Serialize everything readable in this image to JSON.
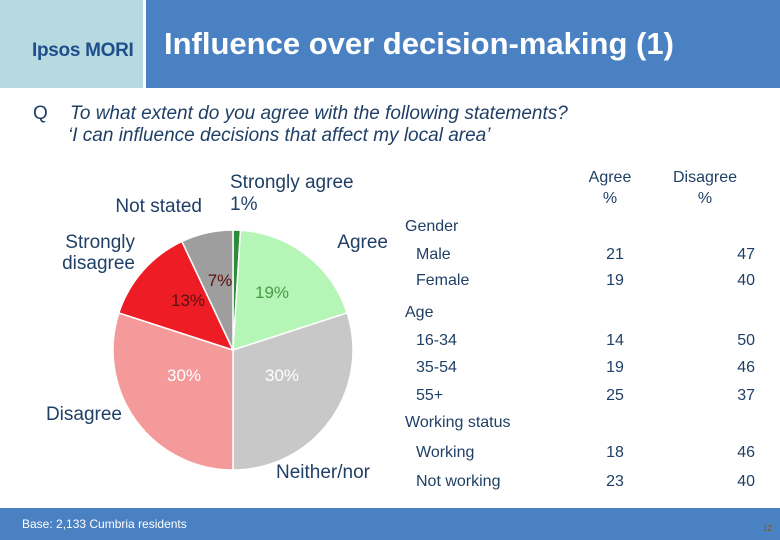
{
  "header": {
    "logo_text": "Ipsos MORI",
    "title": "Influence over decision-making (1)"
  },
  "question": {
    "letter": "Q",
    "line1": "To what extent do you agree with the following statements?",
    "line2": "‘I can influence decisions that affect my local area’"
  },
  "footer": {
    "base": "Base: 2,133 Cumbria residents",
    "page": "12"
  },
  "colors": {
    "title_bar": "#4a81c2",
    "logo_box": "#b6dadf",
    "strongly_agree": "#2e8b3a",
    "agree": "#b5f5b5",
    "neither": "#c8c8c8",
    "disagree": "#f59a9a",
    "strongly_disagree": "#ee1c24",
    "not_stated": "#9e9e9e"
  },
  "chart_data": {
    "type": "pie",
    "slices": [
      {
        "label": "Strongly agree",
        "value": 1,
        "value_label": "1%",
        "label_color": "#1f3f66"
      },
      {
        "label": "Agree",
        "value": 19,
        "value_label": "19%",
        "label_color": "#1f3f66"
      },
      {
        "label": "Neither/nor",
        "value": 30,
        "value_label": "30%",
        "label_color": "#1f3f66"
      },
      {
        "label": "Disagree",
        "value": 30,
        "value_label": "30%",
        "label_color": "#1f3f66"
      },
      {
        "label": "Strongly disagree",
        "value": 13,
        "value_label": "13%",
        "label_color": "#1f3f66"
      },
      {
        "label": "Not stated",
        "value": 7,
        "value_label": "7%",
        "label_color": "#1f3f66"
      }
    ]
  },
  "table": {
    "headers": {
      "agree": "Agree\n%",
      "disagree": "Disagree\n%"
    },
    "groups": [
      {
        "name": "Gender",
        "rows": [
          {
            "label": "Male",
            "agree": "21",
            "disagree": "47"
          },
          {
            "label": "Female",
            "agree": "19",
            "disagree": "40"
          }
        ]
      },
      {
        "name": "Age",
        "rows": [
          {
            "label": "16-34",
            "agree": "14",
            "disagree": "50"
          },
          {
            "label": "35-54",
            "agree": "19",
            "disagree": "46"
          },
          {
            "label": "55+",
            "agree": "25",
            "disagree": "37"
          }
        ]
      },
      {
        "name": "Working status",
        "rows": [
          {
            "label": "Working",
            "agree": "18",
            "disagree": "46"
          },
          {
            "label": "Not working",
            "agree": "23",
            "disagree": "40"
          }
        ]
      }
    ]
  }
}
